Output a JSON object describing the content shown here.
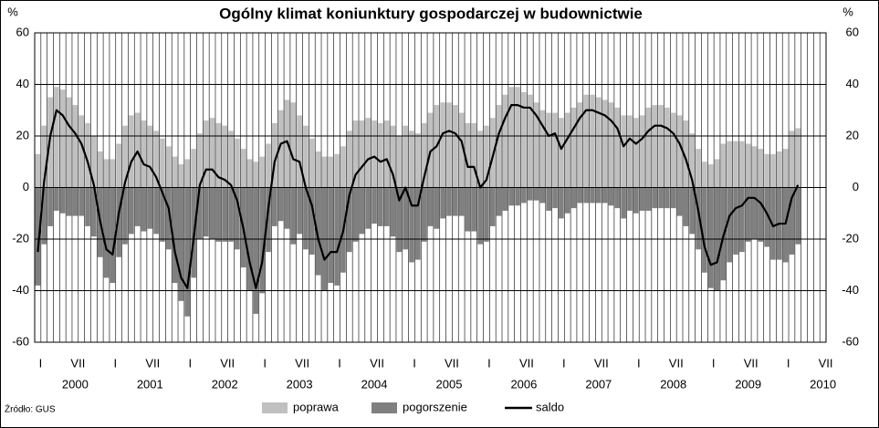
{
  "chart_data": {
    "type": "bar",
    "title": "Ogólny klimat koniunktury gospodarczej w budownictwie",
    "y_label": "%",
    "source": "Źródło: GUS",
    "categories": [
      "I",
      null,
      null,
      null,
      null,
      null,
      "VII",
      null,
      null,
      null,
      null,
      null,
      "I",
      null,
      null,
      null,
      null,
      null,
      "VII",
      null,
      null,
      null,
      null,
      null,
      "I",
      null,
      null,
      null,
      null,
      null,
      "VII",
      null,
      null,
      null,
      null,
      null,
      "I",
      null,
      null,
      null,
      null,
      null,
      "VII",
      null,
      null,
      null,
      null,
      null,
      "I",
      null,
      null,
      null,
      null,
      null,
      "VII",
      null,
      null,
      null,
      null,
      null,
      "I",
      null,
      null,
      null,
      null,
      null,
      "VII",
      null,
      null,
      null,
      null,
      null,
      "I",
      null,
      null,
      null,
      null,
      null,
      "VII",
      null,
      null,
      null,
      null,
      null,
      "I",
      null,
      null,
      null,
      null,
      null,
      "VII",
      null,
      null,
      null,
      null,
      null,
      "I",
      null,
      null,
      null,
      null,
      null,
      "VII",
      null,
      null,
      null,
      null,
      null,
      "I",
      null,
      null,
      null,
      null,
      null,
      "VII",
      null,
      null,
      null,
      null,
      null,
      "I",
      null,
      null,
      null,
      null,
      null,
      "VII"
    ],
    "years": [
      "2000",
      "2001",
      "2002",
      "2003",
      "2004",
      "2005",
      "2006",
      "2007",
      "2008",
      "2009",
      "2010"
    ],
    "ylim": [
      -60,
      60
    ],
    "yticks": [
      -60,
      -40,
      -20,
      0,
      20,
      40,
      60
    ],
    "grid": true,
    "series": [
      {
        "name": "poprawa",
        "color": "#c0c0c0",
        "values": [
          13,
          24,
          35,
          39,
          38,
          35,
          32,
          28,
          25,
          20,
          14,
          11,
          11,
          17,
          24,
          28,
          29,
          26,
          24,
          22,
          19,
          16,
          12,
          9,
          11,
          15,
          21,
          26,
          27,
          25,
          24,
          22,
          19,
          15,
          11,
          10,
          12,
          17,
          25,
          30,
          34,
          33,
          28,
          24,
          19,
          14,
          12,
          12,
          13,
          16,
          22,
          26,
          26,
          27,
          26,
          25,
          26,
          24,
          20,
          24,
          22,
          21,
          25,
          29,
          32,
          33,
          33,
          32,
          29,
          25,
          25,
          22,
          24,
          27,
          32,
          36,
          39,
          39,
          37,
          36,
          33,
          30,
          29,
          29,
          27,
          29,
          31,
          33,
          36,
          36,
          35,
          34,
          33,
          31,
          28,
          28,
          27,
          28,
          31,
          32,
          32,
          31,
          29,
          28,
          26,
          21,
          15,
          10,
          9,
          11,
          17,
          18,
          18,
          18,
          17,
          16,
          15,
          13,
          13,
          14,
          15,
          22,
          23,
          null,
          null,
          null,
          null
        ]
      },
      {
        "name": "pogorszenie",
        "color": "#808080",
        "values": [
          -38,
          -22,
          -15,
          -9,
          -10,
          -11,
          -11,
          -11,
          -15,
          -19,
          -27,
          -35,
          -37,
          -27,
          -22,
          -18,
          -15,
          -17,
          -16,
          -18,
          -21,
          -24,
          -37,
          -44,
          -50,
          -35,
          -20,
          -19,
          -20,
          -21,
          -21,
          -21,
          -24,
          -31,
          -40,
          -49,
          -41,
          -25,
          -15,
          -13,
          -16,
          -22,
          -18,
          -24,
          -26,
          -34,
          -40,
          -37,
          -38,
          -33,
          -25,
          -21,
          -18,
          -16,
          -14,
          -15,
          -15,
          -19,
          -25,
          -24,
          -29,
          -28,
          -21,
          -15,
          -16,
          -12,
          -11,
          -11,
          -11,
          -17,
          -17,
          -22,
          -21,
          -15,
          -11,
          -9,
          -7,
          -7,
          -6,
          -5,
          -5,
          -6,
          -9,
          -8,
          -12,
          -10,
          -8,
          -6,
          -6,
          -6,
          -6,
          -6,
          -7,
          -8,
          -12,
          -9,
          -10,
          -9,
          -9,
          -8,
          -8,
          -8,
          -8,
          -11,
          -15,
          -18,
          -24,
          -33,
          -39,
          -40,
          -36,
          -29,
          -26,
          -25,
          -21,
          -20,
          -21,
          -23,
          -28,
          -28,
          -29,
          -26,
          -22,
          null,
          null,
          null,
          null
        ]
      },
      {
        "name": "saldo",
        "type": "line",
        "color": "#000000",
        "values": [
          -25,
          2,
          20,
          30,
          28,
          24,
          21,
          17,
          10,
          1,
          -13,
          -24,
          -26,
          -10,
          2,
          10,
          14,
          9,
          8,
          4,
          -2,
          -8,
          -25,
          -35,
          -39,
          -20,
          1,
          7,
          7,
          4,
          3,
          1,
          -5,
          -16,
          -29,
          -39,
          -29,
          -8,
          10,
          17,
          18,
          11,
          10,
          0,
          -7,
          -20,
          -28,
          -25,
          -25,
          -17,
          -3,
          5,
          8,
          11,
          12,
          10,
          11,
          5,
          -5,
          0,
          -7,
          -7,
          4,
          14,
          16,
          21,
          22,
          21,
          18,
          8,
          8,
          0,
          3,
          12,
          21,
          27,
          32,
          32,
          31,
          31,
          28,
          24,
          20,
          21,
          15,
          19,
          23,
          27,
          30,
          30,
          29,
          28,
          26,
          23,
          16,
          19,
          17,
          19,
          22,
          24,
          24,
          23,
          21,
          17,
          11,
          3,
          -9,
          -23,
          -30,
          -29,
          -19,
          -11,
          -8,
          -7,
          -4,
          -4,
          -6,
          -10,
          -15,
          -14,
          -14,
          -4,
          1,
          null,
          null,
          null,
          null
        ]
      }
    ]
  }
}
